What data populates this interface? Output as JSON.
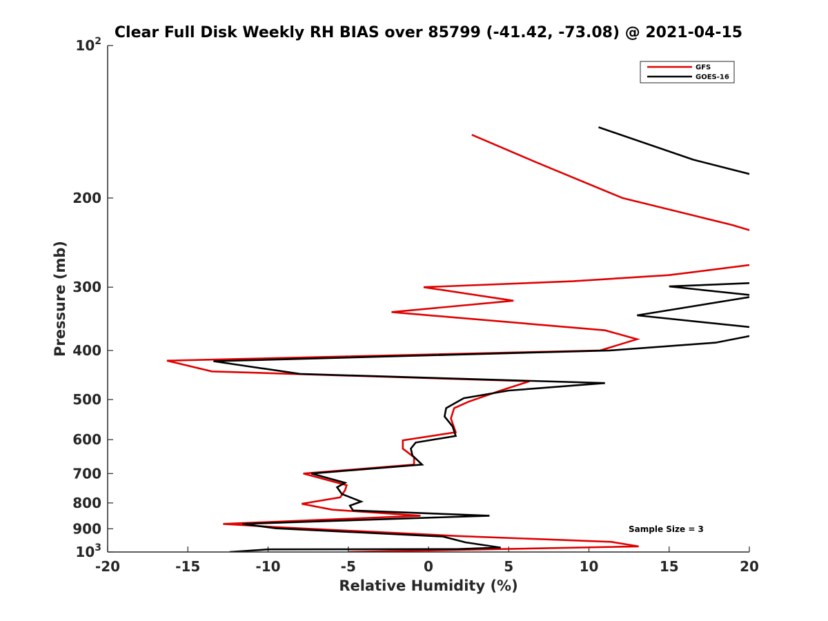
{
  "chart_data": {
    "type": "line",
    "title": "Clear Full Disk Weekly RH BIAS over 85799 (-41.42, -73.08) @ 2021-04-15",
    "xlabel": "Relative Humidity (%)",
    "ylabel": "Pressure (mb)",
    "xlim": [
      -20,
      20
    ],
    "ylim": [
      100,
      1000
    ],
    "y_scale": "log",
    "y_reversed": true,
    "x_ticks": [
      "-20",
      "-15",
      "-10",
      "-5",
      "0",
      "5",
      "10",
      "15",
      "20"
    ],
    "y_ticks": [
      {
        "value": 100,
        "base": "10",
        "exp": "2"
      },
      {
        "value": 200,
        "label": "200"
      },
      {
        "value": 300,
        "label": "300"
      },
      {
        "value": 400,
        "label": "400"
      },
      {
        "value": 500,
        "label": "500"
      },
      {
        "value": 600,
        "label": "600"
      },
      {
        "value": 700,
        "label": "700"
      },
      {
        "value": 800,
        "label": "800"
      },
      {
        "value": 900,
        "label": "900"
      },
      {
        "value": 1000,
        "base": "10",
        "exp": "3"
      }
    ],
    "grid": false,
    "legend_position": "top-right",
    "annotation": "Sample Size = 3",
    "series": [
      {
        "name": "GFS",
        "color": "#e00000",
        "points": [
          [
            2.7,
            150
          ],
          [
            6.7,
            170
          ],
          [
            12.1,
            200
          ],
          [
            18.9,
            226
          ],
          [
            20.5,
            234
          ],
          [
            20.5,
            270
          ],
          [
            15.0,
            284
          ],
          [
            9.0,
            292
          ],
          [
            -0.3,
            300
          ],
          [
            5.3,
            319
          ],
          [
            -2.3,
            336
          ],
          [
            11.0,
            365
          ],
          [
            13.0,
            380
          ],
          [
            10.7,
            400
          ],
          [
            -16.3,
            419
          ],
          [
            -13.5,
            440
          ],
          [
            6.3,
            460
          ],
          [
            4.5,
            480
          ],
          [
            2.5,
            505
          ],
          [
            1.6,
            520
          ],
          [
            1.4,
            545
          ],
          [
            1.7,
            580
          ],
          [
            -1.6,
            602
          ],
          [
            -1.6,
            625
          ],
          [
            -0.9,
            650
          ],
          [
            -0.9,
            672
          ],
          [
            -7.8,
            700
          ],
          [
            -5.1,
            738
          ],
          [
            -5.2,
            755
          ],
          [
            -5.5,
            780
          ],
          [
            -7.9,
            803
          ],
          [
            -6.0,
            825
          ],
          [
            -0.5,
            848
          ],
          [
            -12.8,
            880
          ],
          [
            -9.5,
            893
          ],
          [
            1.9,
            930
          ],
          [
            11.4,
            955
          ],
          [
            13.1,
            975
          ],
          [
            -5.0,
            1000
          ]
        ]
      },
      {
        "name": "GOES-16",
        "color": "#000000",
        "points": [
          [
            10.6,
            145
          ],
          [
            16.5,
            168
          ],
          [
            20.5,
            181
          ],
          [
            20.5,
            294
          ],
          [
            15.0,
            299
          ],
          [
            20.5,
            312
          ],
          [
            13.0,
            341
          ],
          [
            20.5,
            361
          ],
          [
            20.5,
            372
          ],
          [
            17.9,
            386
          ],
          [
            11.3,
            400
          ],
          [
            -13.4,
            420
          ],
          [
            -8.0,
            445
          ],
          [
            11.0,
            464
          ],
          [
            5.0,
            480
          ],
          [
            2.2,
            497
          ],
          [
            1.1,
            520
          ],
          [
            1.0,
            540
          ],
          [
            1.5,
            565
          ],
          [
            1.7,
            590
          ],
          [
            -0.8,
            608
          ],
          [
            -1.1,
            625
          ],
          [
            -1.0,
            645
          ],
          [
            -0.4,
            672
          ],
          [
            -7.3,
            700
          ],
          [
            -5.2,
            730
          ],
          [
            -5.7,
            745
          ],
          [
            -5.4,
            768
          ],
          [
            -4.2,
            795
          ],
          [
            -4.9,
            810
          ],
          [
            -4.7,
            828
          ],
          [
            3.8,
            848
          ],
          [
            -11.6,
            880
          ],
          [
            -9.5,
            898
          ],
          [
            0.9,
            932
          ],
          [
            2.3,
            957
          ],
          [
            4.5,
            980
          ],
          [
            1.8,
            987
          ],
          [
            -10.0,
            988
          ],
          [
            -12.4,
            1000
          ]
        ]
      }
    ]
  }
}
